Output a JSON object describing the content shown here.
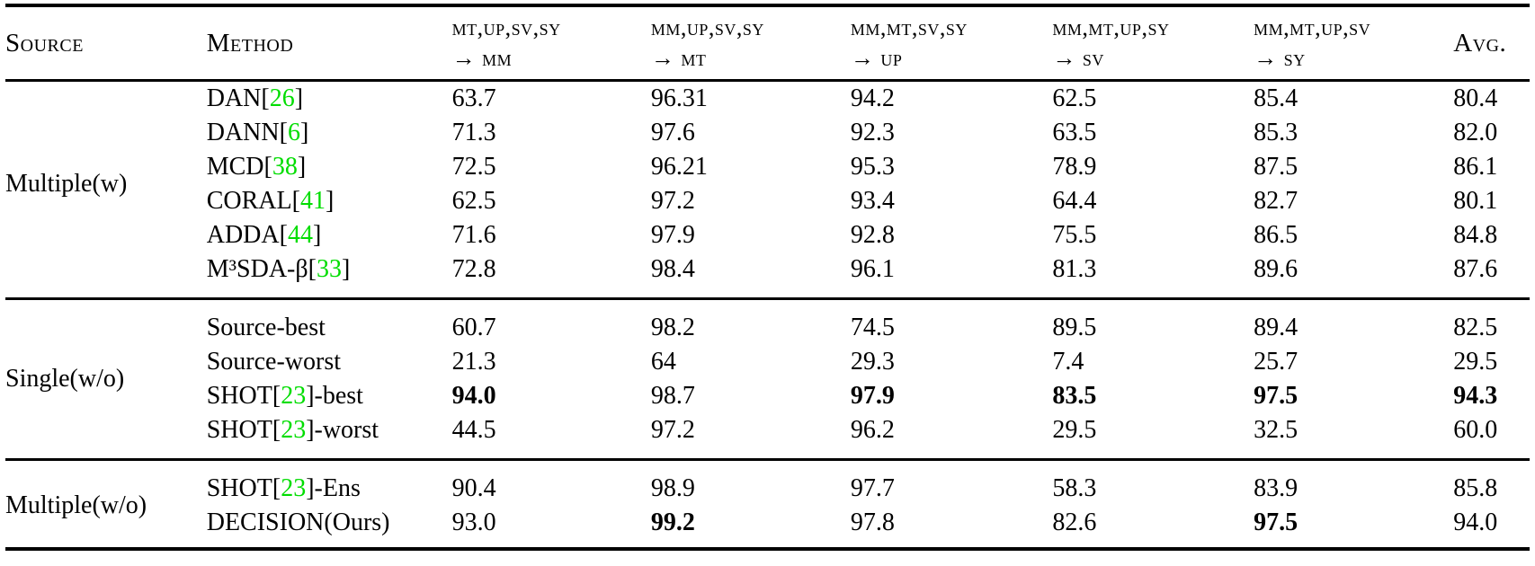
{
  "page": {
    "background": "#ffffff",
    "text_color": "#000000",
    "citation_color": "#00dd00"
  },
  "table": {
    "headers": {
      "source": "Source",
      "method": "Method",
      "avg": "Avg.",
      "transfer_columns": [
        {
          "sources": "mt,up,sv,sy",
          "target": "→ mm"
        },
        {
          "sources": "mm,up,sv,sy",
          "target": "→ mt"
        },
        {
          "sources": "mm,mt,sv,sy",
          "target": "→ up"
        },
        {
          "sources": "mm,mt,up,sy",
          "target": "→ sv"
        },
        {
          "sources": "mm,mt,up,sv",
          "target": "→ sy"
        }
      ]
    },
    "groups": [
      {
        "source": "Multiple(w)",
        "rows": [
          {
            "method": "DAN",
            "cite": "26",
            "post": "",
            "values": [
              "63.7",
              "96.31",
              "94.2",
              "62.5",
              "85.4",
              "80.4"
            ],
            "bold": [
              false,
              false,
              false,
              false,
              false,
              false
            ]
          },
          {
            "method": "DANN",
            "cite": "6",
            "post": "",
            "values": [
              "71.3",
              "97.6",
              "92.3",
              "63.5",
              "85.3",
              "82.0"
            ],
            "bold": [
              false,
              false,
              false,
              false,
              false,
              false
            ]
          },
          {
            "method": "MCD",
            "cite": "38",
            "post": "",
            "values": [
              "72.5",
              "96.21",
              "95.3",
              "78.9",
              "87.5",
              "86.1"
            ],
            "bold": [
              false,
              false,
              false,
              false,
              false,
              false
            ]
          },
          {
            "method": "CORAL",
            "cite": "41",
            "post": "",
            "values": [
              "62.5",
              "97.2",
              "93.4",
              "64.4",
              "82.7",
              "80.1"
            ],
            "bold": [
              false,
              false,
              false,
              false,
              false,
              false
            ]
          },
          {
            "method": "ADDA",
            "cite": "44",
            "post": "",
            "values": [
              "71.6",
              "97.9",
              "92.8",
              "75.5",
              "86.5",
              "84.8"
            ],
            "bold": [
              false,
              false,
              false,
              false,
              false,
              false
            ]
          },
          {
            "method": "M³SDA-β",
            "cite": "33",
            "post": "",
            "values": [
              "72.8",
              "98.4",
              "96.1",
              "81.3",
              "89.6",
              "87.6"
            ],
            "bold": [
              false,
              false,
              false,
              false,
              false,
              false
            ]
          }
        ]
      },
      {
        "source": "Single(w/o)",
        "rows": [
          {
            "method": "Source-best",
            "cite": "",
            "post": "",
            "values": [
              "60.7",
              "98.2",
              "74.5",
              "89.5",
              "89.4",
              "82.5"
            ],
            "bold": [
              false,
              false,
              false,
              false,
              false,
              false
            ]
          },
          {
            "method": "Source-worst",
            "cite": "",
            "post": "",
            "values": [
              "21.3",
              "64",
              "29.3",
              "7.4",
              "25.7",
              "29.5"
            ],
            "bold": [
              false,
              false,
              false,
              false,
              false,
              false
            ]
          },
          {
            "method": "SHOT",
            "cite": "23",
            "post": "-best",
            "values": [
              "94.0",
              "98.7",
              "97.9",
              "83.5",
              "97.5",
              "94.3"
            ],
            "bold": [
              true,
              false,
              true,
              true,
              true,
              true
            ]
          },
          {
            "method": "SHOT",
            "cite": "23",
            "post": "-worst",
            "values": [
              "44.5",
              "97.2",
              "96.2",
              "29.5",
              "32.5",
              "60.0"
            ],
            "bold": [
              false,
              false,
              false,
              false,
              false,
              false
            ]
          }
        ]
      },
      {
        "source": "Multiple(w/o)",
        "rows": [
          {
            "method": "SHOT",
            "cite": "23",
            "post": "-Ens",
            "values": [
              "90.4",
              "98.9",
              "97.7",
              "58.3",
              "83.9",
              "85.8"
            ],
            "bold": [
              false,
              false,
              false,
              false,
              false,
              false
            ]
          },
          {
            "method": "DECISION(Ours)",
            "cite": "",
            "post": "",
            "values": [
              "93.0",
              "99.2",
              "97.8",
              "82.6",
              "97.5",
              "94.0"
            ],
            "bold": [
              false,
              true,
              false,
              false,
              true,
              false
            ]
          }
        ]
      }
    ]
  }
}
